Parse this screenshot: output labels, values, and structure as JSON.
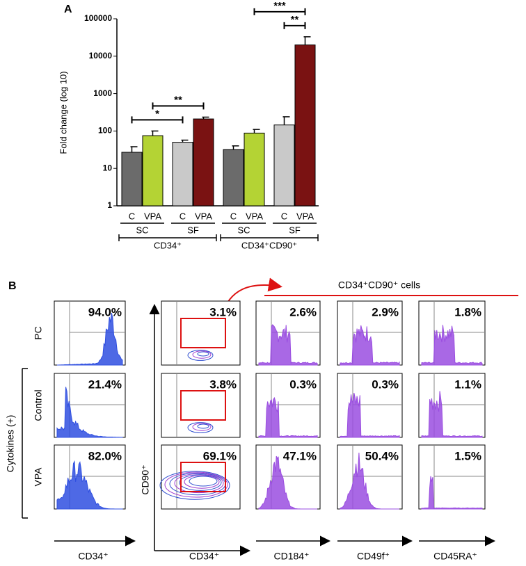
{
  "chart_data": {
    "type": "bar",
    "panel_label": "A",
    "ylabel": "Fold change (log 10)",
    "yscale": "log",
    "categories": [
      "C",
      "VPA",
      "C",
      "VPA",
      "C",
      "VPA",
      "C",
      "VPA"
    ],
    "values": [
      27,
      75,
      50,
      210,
      32,
      88,
      145,
      20000
    ],
    "errors": [
      11,
      25,
      7,
      25,
      8,
      22,
      95,
      13000
    ],
    "colors": [
      "#6b6b6b",
      "#b4d334",
      "#c9c9c9",
      "#7a1212",
      "#6b6b6b",
      "#b4d334",
      "#c9c9c9",
      "#7a1212"
    ],
    "subgroups": [
      "SC",
      "SF",
      "SC",
      "SF"
    ],
    "groups": [
      "CD34⁺",
      "CD34⁺CD90⁺"
    ],
    "ylim": [
      1,
      100000
    ],
    "yticks": [
      1,
      10,
      100,
      1000,
      10000,
      100000
    ],
    "comparisons": [
      {
        "bars": [
          0,
          2
        ],
        "label": "*"
      },
      {
        "bars": [
          1,
          3
        ],
        "label": "**"
      },
      {
        "bars": [
          6,
          7
        ],
        "label": "**"
      },
      {
        "bars": [
          5,
          7
        ],
        "label": "***"
      }
    ]
  },
  "panel_b": {
    "label": "B",
    "header": "CD34⁺CD90⁺ cells",
    "row_labels": [
      "PC",
      "Control",
      "VPA"
    ],
    "row_group": "Cytokines (+)",
    "y_axis_label": "CD90⁺",
    "x_axis_labels": [
      "CD34⁺",
      "CD34⁺",
      "CD184⁺",
      "CD49f⁺",
      "CD45RA⁺"
    ],
    "percentages": [
      [
        "94.0%",
        "3.1%",
        "2.6%",
        "2.9%",
        "1.8%"
      ],
      [
        "21.4%",
        "3.8%",
        "0.3%",
        "0.3%",
        "1.1%"
      ],
      [
        "82.0%",
        "69.1%",
        "47.1%",
        "50.4%",
        "1.5%"
      ]
    ]
  }
}
